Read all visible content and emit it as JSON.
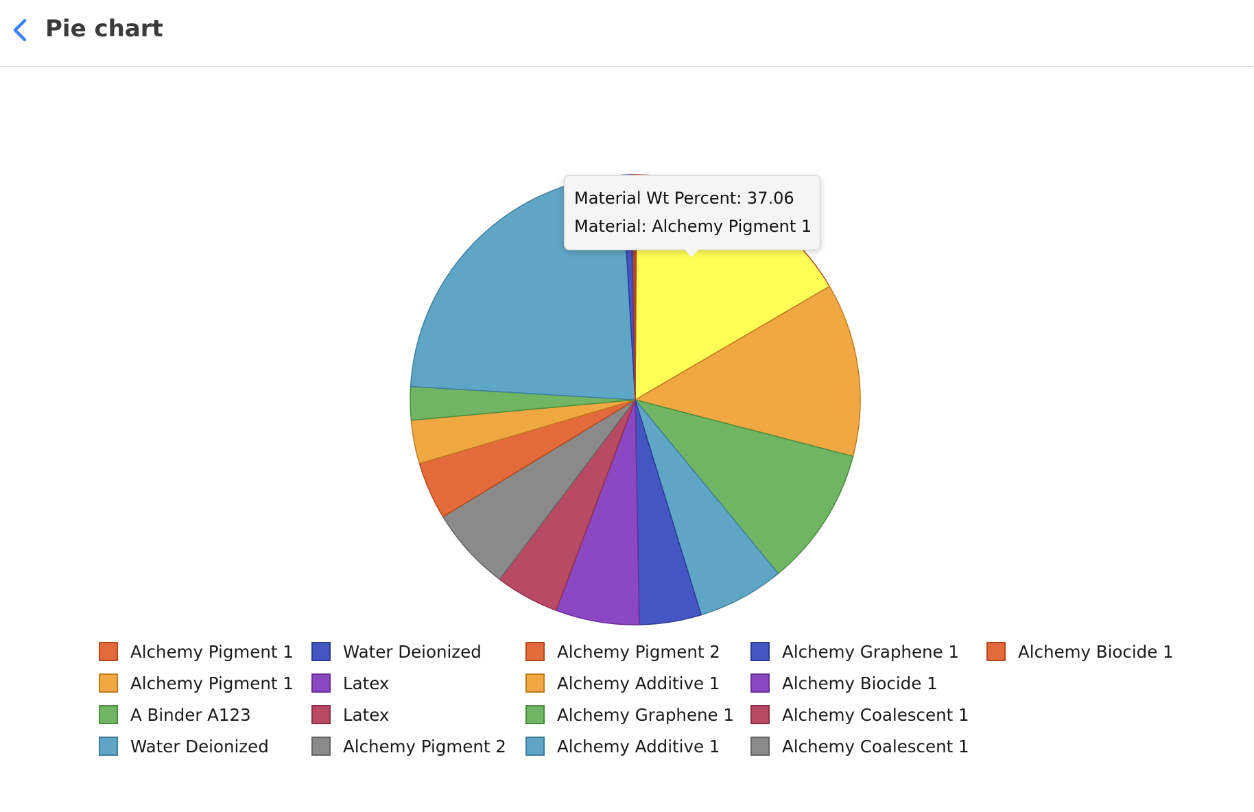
{
  "header": {
    "title": "Pie chart",
    "back_icon": "chevron-left-icon",
    "back_color": "#3b82f6"
  },
  "tooltip": {
    "line1": "Material Wt Percent: 37.06",
    "line2": "Material: Alchemy Pigment 1"
  },
  "chart_data": {
    "type": "pie",
    "title": "",
    "start_angle": "top, clockwise",
    "slices": [
      {
        "label": "Alchemy Pigment 1",
        "value": 0.25,
        "color": "#e36b3b",
        "stroke": "#b8461a"
      },
      {
        "label": "Alchemy Pigment 1",
        "value": 37.06,
        "color": "#ffff55",
        "stroke": "#b8461a"
      },
      {
        "label": "Alchemy Pigment 1",
        "value": 28.0,
        "color": "#f0a842",
        "stroke": "#c07a1e"
      },
      {
        "label": "A Binder A123",
        "value": 22.5,
        "color": "#6fb563",
        "stroke": "#4a8c3f"
      },
      {
        "label": "Water Deionized",
        "value": 14.0,
        "color": "#5fa6c6",
        "stroke": "#3f7d99"
      },
      {
        "label": "Water Deionized",
        "value": 10.0,
        "color": "#4356c2",
        "stroke": "#2b3a96"
      },
      {
        "label": "Latex",
        "value": 13.5,
        "color": "#8c47c2",
        "stroke": "#6a2e99"
      },
      {
        "label": "Latex",
        "value": 10.3,
        "color": "#b84a63",
        "stroke": "#8f2f45"
      },
      {
        "label": "Alchemy Pigment 2",
        "value": 13.5,
        "color": "#8a8a8a",
        "stroke": "#666666"
      },
      {
        "label": "Alchemy Pigment 2",
        "value": 9.3,
        "color": "#e36b3b",
        "stroke": "#b8461a"
      },
      {
        "label": "Alchemy Additive 1",
        "value": 7.0,
        "color": "#f0a842",
        "stroke": "#c07a1e"
      },
      {
        "label": "Alchemy Graphene 1",
        "value": 5.4,
        "color": "#6fb563",
        "stroke": "#4a8c3f"
      },
      {
        "label": "Alchemy Additive 1",
        "value": 52.0,
        "color": "#5fa6c6",
        "stroke": "#3f7d99"
      },
      {
        "label": "Alchemy Graphene 1",
        "value": 1.3,
        "color": "#4356c2",
        "stroke": "#2b3a96"
      },
      {
        "label": "Alchemy Biocide 1",
        "value": 0.2,
        "color": "#8c47c2",
        "stroke": "#6a2e99"
      },
      {
        "label": "Alchemy Coalescent 1",
        "value": 0.2,
        "color": "#b84a63",
        "stroke": "#8f2f45"
      },
      {
        "label": "Alchemy Coalescent 1",
        "value": 0.2,
        "color": "#8a8a8a",
        "stroke": "#666666"
      },
      {
        "label": "Alchemy Biocide 1",
        "value": 0.2,
        "color": "#e36b3b",
        "stroke": "#b8461a"
      }
    ],
    "legend": {
      "placement": "bottom",
      "columns": [
        [
          {
            "label": "Alchemy Pigment 1",
            "color": "#e36b3b",
            "stroke": "#b8461a"
          },
          {
            "label": "Alchemy Pigment 1",
            "color": "#f0a842",
            "stroke": "#c07a1e"
          },
          {
            "label": "A Binder A123",
            "color": "#6fb563",
            "stroke": "#4a8c3f"
          },
          {
            "label": "Water Deionized",
            "color": "#5fa6c6",
            "stroke": "#3f7d99"
          }
        ],
        [
          {
            "label": "Water Deionized",
            "color": "#4356c2",
            "stroke": "#2b3a96"
          },
          {
            "label": "Latex",
            "color": "#8c47c2",
            "stroke": "#6a2e99"
          },
          {
            "label": "Latex",
            "color": "#b84a63",
            "stroke": "#8f2f45"
          },
          {
            "label": "Alchemy Pigment 2",
            "color": "#8a8a8a",
            "stroke": "#666666"
          }
        ],
        [
          {
            "label": "Alchemy Pigment 2",
            "color": "#e36b3b",
            "stroke": "#b8461a"
          },
          {
            "label": "Alchemy Additive 1",
            "color": "#f0a842",
            "stroke": "#c07a1e"
          },
          {
            "label": "Alchemy Graphene 1",
            "color": "#6fb563",
            "stroke": "#4a8c3f"
          },
          {
            "label": "Alchemy Additive 1",
            "color": "#5fa6c6",
            "stroke": "#3f7d99"
          }
        ],
        [
          {
            "label": "Alchemy Graphene 1",
            "color": "#4356c2",
            "stroke": "#2b3a96"
          },
          {
            "label": "Alchemy Biocide 1",
            "color": "#8c47c2",
            "stroke": "#6a2e99"
          },
          {
            "label": "Alchemy Coalescent 1",
            "color": "#b84a63",
            "stroke": "#8f2f45"
          },
          {
            "label": "Alchemy Coalescent 1",
            "color": "#8a8a8a",
            "stroke": "#666666"
          }
        ],
        [
          {
            "label": "Alchemy Biocide 1",
            "color": "#e36b3b",
            "stroke": "#b8461a"
          }
        ]
      ]
    }
  }
}
